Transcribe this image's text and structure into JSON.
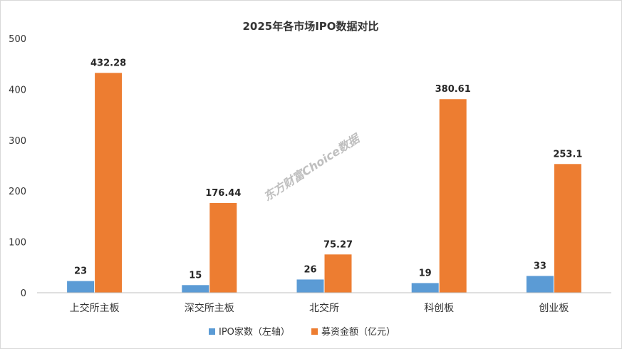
{
  "chart_data": {
    "type": "bar",
    "title": "2025年各市场IPO数据对比",
    "categories": [
      "上交所主板",
      "深交所主板",
      "北交所",
      "科创板",
      "创业板"
    ],
    "series": [
      {
        "name": "IPO家数（左轴）",
        "values": [
          23,
          15,
          26,
          19,
          33
        ],
        "labels": [
          "23",
          "15",
          "26",
          "19",
          "33"
        ],
        "color": "#5b9bd5"
      },
      {
        "name": "募资金额（亿元）",
        "values": [
          432.28,
          176.44,
          75.27,
          380.61,
          253.1
        ],
        "labels": [
          "432.28",
          "176.44",
          "75.27",
          "380.61",
          "253.1"
        ],
        "color": "#ed7d31"
      }
    ],
    "y_ticks": [
      "0",
      "100",
      "200",
      "300",
      "400",
      "500"
    ],
    "ylim": [
      0,
      500
    ],
    "grid": false,
    "legend_position": "bottom",
    "watermark": "东方财富Choice数据"
  }
}
